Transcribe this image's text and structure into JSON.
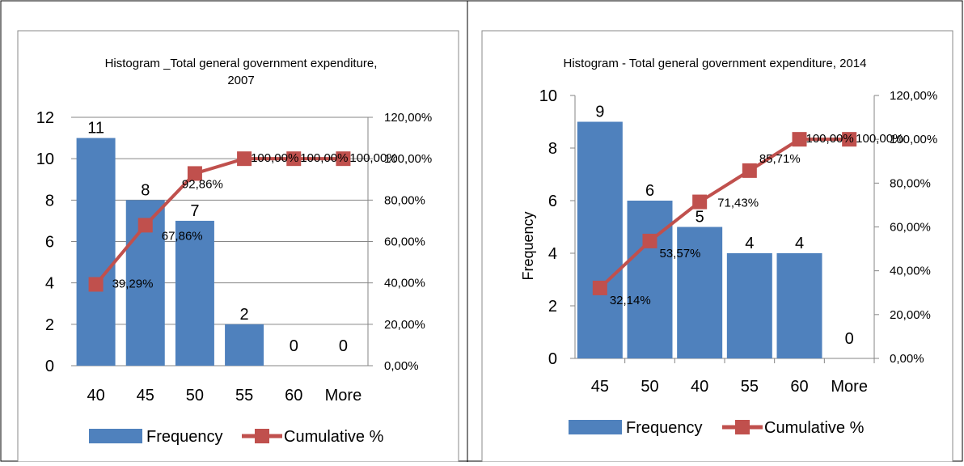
{
  "chart_data": [
    {
      "type": "bar",
      "title": "Histogram _Total general government expenditure,",
      "subtitle": "2007",
      "ylabel": "",
      "categories": [
        "40",
        "45",
        "50",
        "55",
        "60",
        "More"
      ],
      "series": [
        {
          "name": "Frequency",
          "type": "bar",
          "values": [
            11,
            8,
            7,
            2,
            0,
            0
          ],
          "labels": [
            "11",
            "8",
            "7",
            "2",
            "0",
            "0"
          ],
          "color": "#4F81BD"
        },
        {
          "name": "Cumulative %",
          "type": "line",
          "axis": "right",
          "values": [
            39.29,
            67.86,
            92.86,
            100,
            100,
            100
          ],
          "labels": [
            "39,29%",
            "67,86%",
            "92,86%",
            "100,00%",
            "100,00%",
            "100,00%"
          ],
          "color": "#C0504D"
        }
      ],
      "ylim": [
        0,
        12
      ],
      "yticks": [
        "0",
        "2",
        "4",
        "6",
        "8",
        "10",
        "12"
      ],
      "y2lim": [
        0,
        120
      ],
      "y2ticks": [
        "0,00%",
        "20,00%",
        "40,00%",
        "60,00%",
        "80,00%",
        "100,00%",
        "120,00%"
      ],
      "grid": true,
      "legend": "bottom"
    },
    {
      "type": "bar",
      "title": "Histogram - Total general government expenditure, 2014",
      "subtitle": "",
      "ylabel": "Frequency",
      "categories": [
        "45",
        "50",
        "40",
        "55",
        "60",
        "More"
      ],
      "series": [
        {
          "name": "Frequency",
          "type": "bar",
          "values": [
            9,
            6,
            5,
            4,
            4,
            0
          ],
          "labels": [
            "9",
            "6",
            "5",
            "4",
            "4",
            "0"
          ],
          "color": "#4F81BD"
        },
        {
          "name": "Cumulative %",
          "type": "line",
          "axis": "right",
          "values": [
            32.14,
            53.57,
            71.43,
            85.71,
            100,
            100
          ],
          "labels": [
            "32,14%",
            "53,57%",
            "71,43%",
            "85,71%",
            "100,00%",
            "100,00%"
          ],
          "color": "#C0504D"
        }
      ],
      "ylim": [
        0,
        10
      ],
      "yticks": [
        "0",
        "2",
        "4",
        "6",
        "8",
        "10"
      ],
      "y2lim": [
        0,
        120
      ],
      "y2ticks": [
        "0,00%",
        "20,00%",
        "40,00%",
        "60,00%",
        "80,00%",
        "100,00%",
        "120,00%"
      ],
      "grid": false,
      "legend": "bottom"
    }
  ]
}
